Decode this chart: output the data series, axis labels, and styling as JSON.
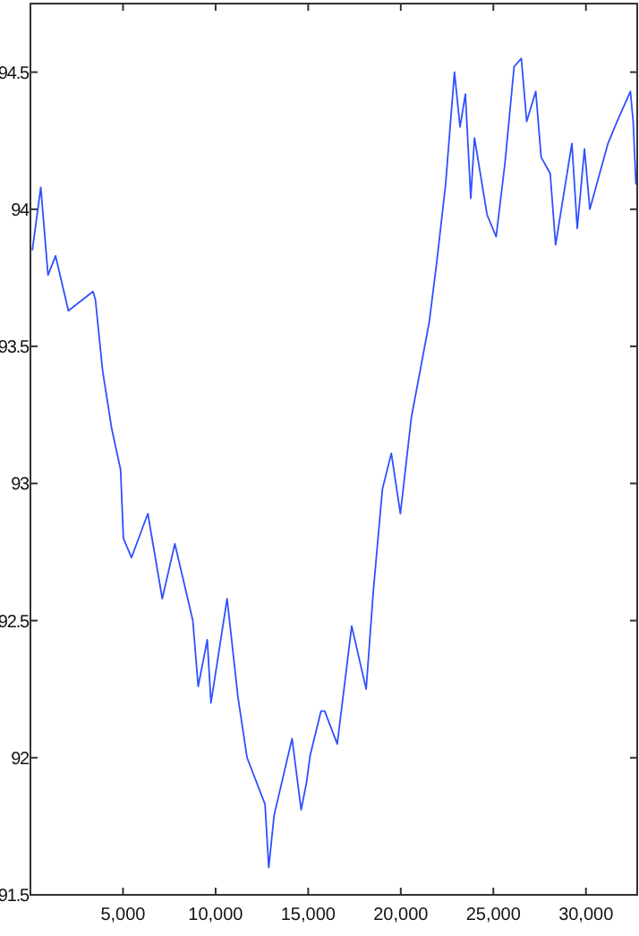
{
  "chart_data": {
    "type": "line",
    "xlim": [
      0,
      32768
    ],
    "ylim": [
      91.5,
      94.75
    ],
    "xticks": [
      {
        "value": 5000,
        "label": "5,000"
      },
      {
        "value": 10000,
        "label": "10,000"
      },
      {
        "value": 15000,
        "label": "15,000"
      },
      {
        "value": 20000,
        "label": "20,000"
      },
      {
        "value": 25000,
        "label": "25,000"
      },
      {
        "value": 30000,
        "label": "30,000"
      }
    ],
    "yticks": [
      91.5,
      92,
      92.5,
      93,
      93.5,
      94,
      94.5
    ],
    "grid": false,
    "series": [
      {
        "color": "#3050ff",
        "x": [
          100,
          560,
          950,
          1360,
          2050,
          3380,
          3510,
          3900,
          4390,
          4870,
          5020,
          5460,
          6340,
          7120,
          7800,
          8770,
          9060,
          9550,
          9750,
          10620,
          11210,
          11700,
          12670,
          12870,
          13160,
          14130,
          14620,
          14910,
          15110,
          15690,
          15890,
          16570,
          17350,
          18130,
          18520,
          19010,
          19490,
          19980,
          20570,
          21540,
          21930,
          22420,
          22900,
          23200,
          23490,
          23780,
          23980,
          24660,
          25150,
          25630,
          26120,
          26510,
          26800,
          27290,
          27580,
          28070,
          28360,
          29240,
          29530,
          29920,
          30210,
          31190,
          31680,
          32400,
          32550,
          32700
        ],
        "values": [
          93.85,
          94.08,
          93.76,
          93.83,
          93.63,
          93.7,
          93.67,
          93.41,
          93.2,
          93.05,
          92.8,
          92.73,
          92.89,
          92.58,
          92.78,
          92.5,
          92.26,
          92.43,
          92.2,
          92.58,
          92.22,
          92.0,
          91.83,
          91.6,
          91.79,
          92.07,
          91.81,
          91.91,
          92.01,
          92.17,
          92.17,
          92.05,
          92.48,
          92.25,
          92.61,
          92.98,
          93.11,
          92.89,
          93.24,
          93.59,
          93.8,
          94.09,
          94.5,
          94.3,
          94.42,
          94.04,
          94.26,
          93.98,
          93.9,
          94.17,
          94.52,
          94.55,
          94.32,
          94.43,
          94.19,
          94.13,
          93.87,
          94.24,
          93.93,
          94.22,
          94.0,
          94.24,
          94.32,
          94.43,
          94.32,
          94.09
        ]
      }
    ]
  }
}
